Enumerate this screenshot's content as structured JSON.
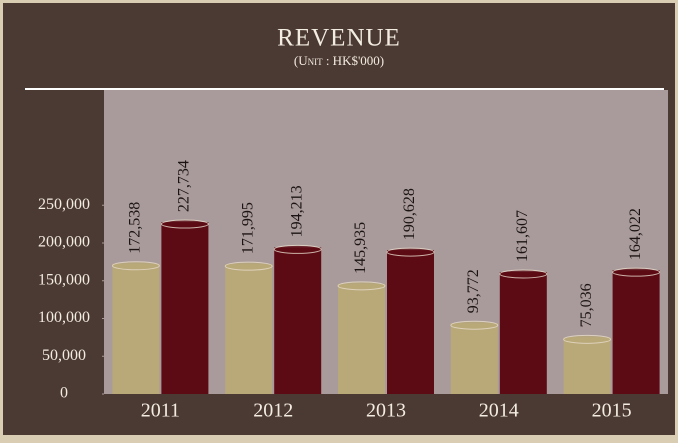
{
  "chart_data": {
    "type": "bar",
    "title": "REVENUE",
    "subtitle": "(Unit : HK$'000)",
    "categories": [
      "2011",
      "2012",
      "2013",
      "2014",
      "2015"
    ],
    "series": [
      {
        "color": "#b9a878",
        "values": [
          172538,
          171995,
          145935,
          93772,
          75036
        ],
        "value_labels": [
          "172,538",
          "171,995",
          "145,935",
          "93,772",
          "75,036"
        ]
      },
      {
        "color": "#5c0b14",
        "values": [
          227734,
          194213,
          190628,
          161607,
          164022
        ],
        "value_labels": [
          "227,734",
          "194,213",
          "190,628",
          "161,607",
          "164,022"
        ]
      }
    ],
    "ylim": [
      0,
      400000
    ],
    "yticks": [
      0,
      {
        "value": 50000,
        "label": "50,000"
      },
      {
        "value": 100000,
        "label": "100,000"
      },
      {
        "value": 150000,
        "label": "150,000"
      },
      {
        "value": 200000,
        "label": "200,000"
      },
      {
        "value": 250000,
        "label": "250,000"
      }
    ]
  }
}
